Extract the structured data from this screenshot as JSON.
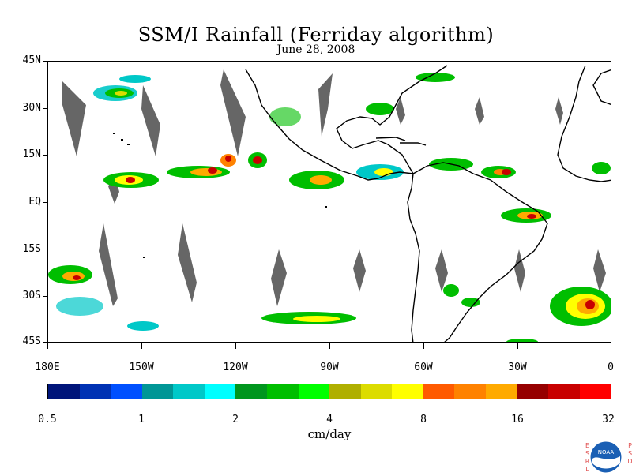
{
  "title": "SSM/I Rainfall (Ferriday algorithm)",
  "subtitle": "June 28, 2008",
  "map": {
    "lat_labels": [
      "45N",
      "30N",
      "15N",
      "EQ",
      "15S",
      "30S",
      "45S"
    ],
    "lon_labels": [
      "180E",
      "150W",
      "120W",
      "90W",
      "60W",
      "30W",
      "0"
    ],
    "lat_range": [
      -45,
      45
    ],
    "lon_range": [
      -180,
      0
    ],
    "data_type": "gridded rainfall rate"
  },
  "colorbar": {
    "labels": [
      "0.5",
      "1",
      "2",
      "4",
      "8",
      "16",
      "32"
    ],
    "units": "cm/day",
    "colors": [
      "#00157a",
      "#0032b4",
      "#0050ff",
      "#009696",
      "#00c8c8",
      "#00ffff",
      "#00961e",
      "#00be00",
      "#00ff00",
      "#afaf00",
      "#dcdc00",
      "#ffff00",
      "#ff5a00",
      "#ff8200",
      "#ffaa00",
      "#960000",
      "#c80000",
      "#ff0000"
    ]
  },
  "logo": {
    "left_text": "ESRL",
    "right_text": "PSD",
    "emblem_text": "NOAA"
  }
}
